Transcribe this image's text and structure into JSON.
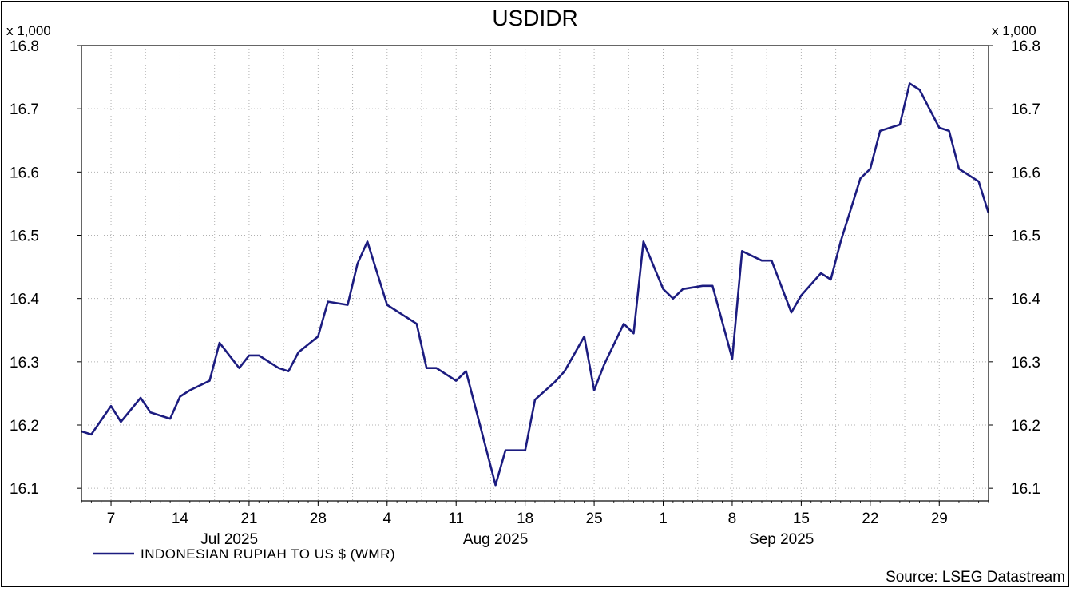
{
  "chart_data": {
    "type": "line",
    "title": "USDIDR",
    "y_multiplier_left": "x 1,000",
    "y_multiplier_right": "x 1,000",
    "ylim": [
      16.08,
      16.8
    ],
    "yticks": [
      "16.1",
      "16.2",
      "16.3",
      "16.4",
      "16.5",
      "16.6",
      "16.7",
      "16.8"
    ],
    "xlim": [
      "2025-07-04",
      "2025-10-04"
    ],
    "x_ticks": [
      {
        "date": "2025-07-07",
        "label": "7"
      },
      {
        "date": "2025-07-14",
        "label": "14"
      },
      {
        "date": "2025-07-21",
        "label": "21"
      },
      {
        "date": "2025-07-28",
        "label": "28"
      },
      {
        "date": "2025-08-04",
        "label": "4"
      },
      {
        "date": "2025-08-11",
        "label": "11"
      },
      {
        "date": "2025-08-18",
        "label": "18"
      },
      {
        "date": "2025-08-25",
        "label": "25"
      },
      {
        "date": "2025-09-01",
        "label": "1"
      },
      {
        "date": "2025-09-08",
        "label": "8"
      },
      {
        "date": "2025-09-15",
        "label": "15"
      },
      {
        "date": "2025-09-22",
        "label": "22"
      },
      {
        "date": "2025-09-29",
        "label": "29"
      }
    ],
    "month_labels": [
      {
        "date": "2025-07-19",
        "label": "Jul 2025"
      },
      {
        "date": "2025-08-15",
        "label": "Aug 2025"
      },
      {
        "date": "2025-09-13",
        "label": "Sep 2025"
      }
    ],
    "grid": true,
    "legend_position": "bottom-left",
    "series": [
      {
        "name": "INDONESIAN RUPIAH TO US $ (WMR)",
        "color": "#1c1c80",
        "points": [
          [
            "2025-07-04",
            16.19
          ],
          [
            "2025-07-05",
            16.185
          ],
          [
            "2025-07-07",
            16.23
          ],
          [
            "2025-07-08",
            16.205
          ],
          [
            "2025-07-10",
            16.243
          ],
          [
            "2025-07-11",
            16.22
          ],
          [
            "2025-07-13",
            16.21
          ],
          [
            "2025-07-14",
            16.245
          ],
          [
            "2025-07-15",
            16.255
          ],
          [
            "2025-07-17",
            16.27
          ],
          [
            "2025-07-18",
            16.33
          ],
          [
            "2025-07-20",
            16.29
          ],
          [
            "2025-07-21",
            16.31
          ],
          [
            "2025-07-22",
            16.31
          ],
          [
            "2025-07-24",
            16.29
          ],
          [
            "2025-07-25",
            16.285
          ],
          [
            "2025-07-26",
            16.315
          ],
          [
            "2025-07-28",
            16.34
          ],
          [
            "2025-07-29",
            16.395
          ],
          [
            "2025-07-31",
            16.39
          ],
          [
            "2025-08-01",
            16.455
          ],
          [
            "2025-08-02",
            16.49
          ],
          [
            "2025-08-04",
            16.39
          ],
          [
            "2025-08-05",
            16.38
          ],
          [
            "2025-08-07",
            16.36
          ],
          [
            "2025-08-08",
            16.29
          ],
          [
            "2025-08-09",
            16.29
          ],
          [
            "2025-08-11",
            16.27
          ],
          [
            "2025-08-12",
            16.285
          ],
          [
            "2025-08-15",
            16.105
          ],
          [
            "2025-08-16",
            16.16
          ],
          [
            "2025-08-18",
            16.16
          ],
          [
            "2025-08-19",
            16.24
          ],
          [
            "2025-08-21",
            16.268
          ],
          [
            "2025-08-22",
            16.285
          ],
          [
            "2025-08-24",
            16.34
          ],
          [
            "2025-08-25",
            16.255
          ],
          [
            "2025-08-26",
            16.295
          ],
          [
            "2025-08-28",
            16.36
          ],
          [
            "2025-08-29",
            16.345
          ],
          [
            "2025-08-30",
            16.49
          ],
          [
            "2025-09-01",
            16.415
          ],
          [
            "2025-09-02",
            16.4
          ],
          [
            "2025-09-03",
            16.415
          ],
          [
            "2025-09-05",
            16.42
          ],
          [
            "2025-09-06",
            16.42
          ],
          [
            "2025-09-08",
            16.305
          ],
          [
            "2025-09-09",
            16.475
          ],
          [
            "2025-09-11",
            16.46
          ],
          [
            "2025-09-12",
            16.46
          ],
          [
            "2025-09-14",
            16.378
          ],
          [
            "2025-09-15",
            16.405
          ],
          [
            "2025-09-17",
            16.44
          ],
          [
            "2025-09-18",
            16.43
          ],
          [
            "2025-09-19",
            16.49
          ],
          [
            "2025-09-21",
            16.59
          ],
          [
            "2025-09-22",
            16.605
          ],
          [
            "2025-09-23",
            16.665
          ],
          [
            "2025-09-25",
            16.675
          ],
          [
            "2025-09-26",
            16.74
          ],
          [
            "2025-09-27",
            16.73
          ],
          [
            "2025-09-29",
            16.67
          ],
          [
            "2025-09-30",
            16.665
          ],
          [
            "2025-10-01",
            16.605
          ],
          [
            "2025-10-03",
            16.585
          ],
          [
            "2025-10-04",
            16.535
          ]
        ]
      }
    ],
    "source": "Source: LSEG Datastream"
  }
}
